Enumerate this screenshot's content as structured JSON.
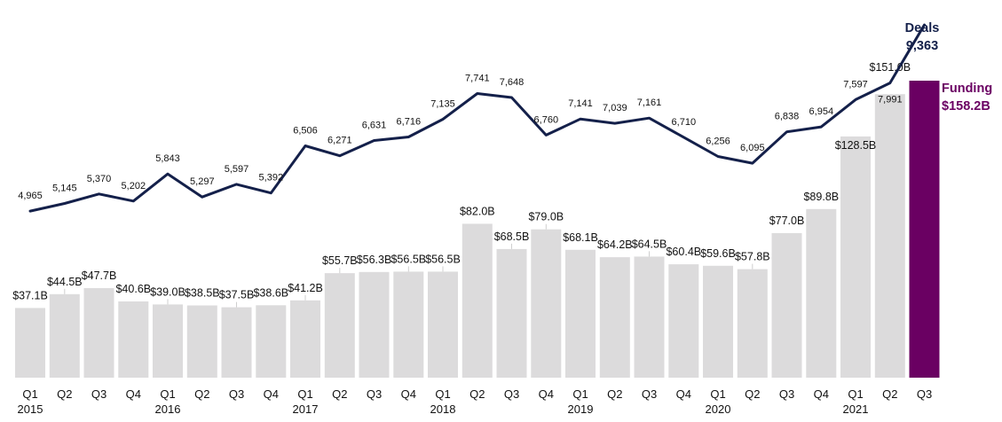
{
  "chart_data": {
    "type": "bar",
    "categories": [
      "Q1",
      "Q2",
      "Q3",
      "Q4",
      "Q1",
      "Q2",
      "Q3",
      "Q4",
      "Q1",
      "Q2",
      "Q3",
      "Q4",
      "Q1",
      "Q2",
      "Q3",
      "Q4",
      "Q1",
      "Q2",
      "Q3",
      "Q4",
      "Q1",
      "Q2",
      "Q3",
      "Q4",
      "Q1",
      "Q2",
      "Q3"
    ],
    "years": [
      {
        "label": "2015",
        "index": 0
      },
      {
        "label": "2016",
        "index": 4
      },
      {
        "label": "2017",
        "index": 8
      },
      {
        "label": "2018",
        "index": 12
      },
      {
        "label": "2019",
        "index": 16
      },
      {
        "label": "2020",
        "index": 20
      },
      {
        "label": "2021",
        "index": 24
      }
    ],
    "series": [
      {
        "name": "Funding",
        "kind": "bar",
        "unit": "B",
        "values": [
          37.1,
          44.5,
          47.7,
          40.6,
          39.0,
          38.5,
          37.5,
          38.6,
          41.2,
          55.7,
          56.3,
          56.5,
          56.5,
          82.0,
          68.5,
          79.0,
          68.1,
          64.2,
          64.5,
          60.4,
          59.6,
          57.8,
          77.0,
          89.8,
          128.5,
          151.0,
          158.2
        ],
        "labels": [
          "$37.1B",
          "$44.5B",
          "$47.7B",
          "$40.6B",
          "$39.0B",
          "$38.5B",
          "$37.5B",
          "$38.6B",
          "$41.2B",
          "$55.7B",
          "$56.3B",
          "$56.5B",
          "$56.5B",
          "$82.0B",
          "$68.5B",
          "$79.0B",
          "$68.1B",
          "$64.2B",
          "$64.5B",
          "$60.4B",
          "$59.6B",
          "$57.8B",
          "$77.0B",
          "$89.8B",
          "$128.5B",
          "$151.0B",
          "$158.2B"
        ],
        "color": "#dcdbdc",
        "highlight_color": "#6a0062"
      },
      {
        "name": "Deals",
        "kind": "line",
        "values": [
          4965,
          5145,
          5370,
          5202,
          5843,
          5297,
          5597,
          5392,
          6506,
          6271,
          6631,
          6716,
          7135,
          7741,
          7648,
          6760,
          7141,
          7039,
          7161,
          6710,
          6256,
          6095,
          6838,
          6954,
          7597,
          7991,
          9363
        ],
        "labels": [
          "4,965",
          "5,145",
          "5,370",
          "5,202",
          "5,843",
          "5,297",
          "5,597",
          "5,392",
          "6,506",
          "6,271",
          "6,631",
          "6,716",
          "7,135",
          "7,741",
          "7,648",
          "6,760",
          "7,141",
          "7,039",
          "7,161",
          "6,710",
          "6,256",
          "6,095",
          "6,838",
          "6,954",
          "7,597",
          "7,991",
          "9,363"
        ],
        "color": "#14204a"
      }
    ],
    "callouts": {
      "deals_title": "Deals",
      "deals_value": "9,363",
      "funding_title": "Funding",
      "funding_value": "$158.2B"
    },
    "grid": false,
    "legend": "none"
  }
}
